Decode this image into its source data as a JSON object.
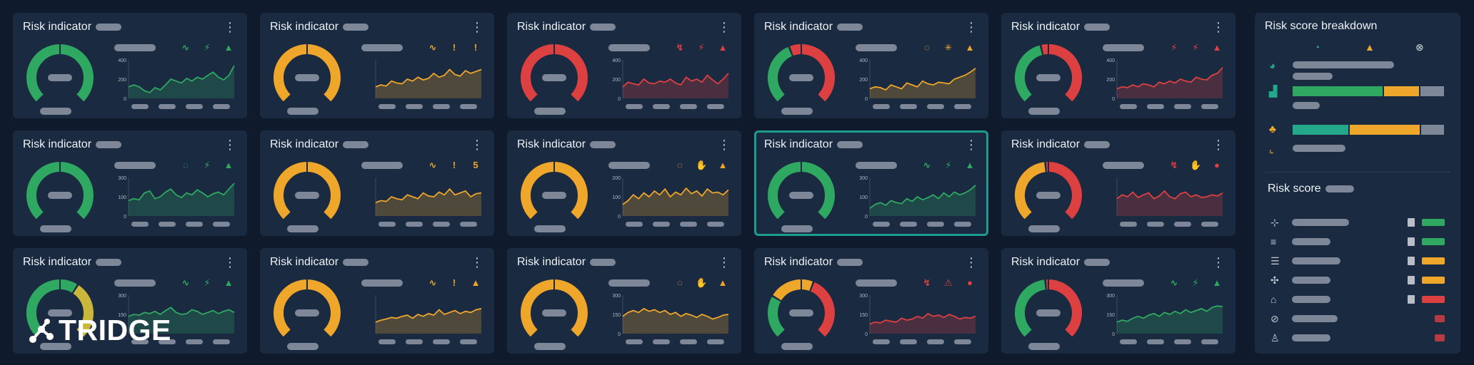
{
  "cards": [
    {
      "title": "Risk indicator",
      "color": "#2fa862",
      "gauge": [
        [
          "#2fa862",
          1
        ]
      ],
      "ticks": [
        "400",
        "200",
        "0"
      ],
      "series": [
        0.3,
        0.35,
        0.3,
        0.2,
        0.15,
        0.28,
        0.22,
        0.35,
        0.5,
        0.45,
        0.4,
        0.52,
        0.45,
        0.55,
        0.5,
        0.6,
        0.68,
        0.55,
        0.48,
        0.6,
        0.85
      ],
      "icons": [
        "∿",
        "⚡",
        "▲"
      ],
      "iconColors": [
        "#2fa862",
        "#2fa862",
        "#2fa862"
      ]
    },
    {
      "title": "Risk indicator",
      "color": "#eea62b",
      "gauge": [
        [
          "#eea62b",
          1
        ]
      ],
      "ticks": [
        "",
        "",
        ""
      ],
      "series": [
        0.3,
        0.35,
        0.32,
        0.45,
        0.4,
        0.38,
        0.5,
        0.45,
        0.55,
        0.48,
        0.52,
        0.65,
        0.55,
        0.6,
        0.75,
        0.62,
        0.58,
        0.72,
        0.65,
        0.7,
        0.75
      ],
      "icons": [
        "∿",
        "!",
        "!"
      ],
      "iconColors": [
        "#eea62b",
        "#eea62b",
        "#eea62b"
      ]
    },
    {
      "title": "Risk indicator",
      "color": "#dc4040",
      "gauge": [
        [
          "#dc4040",
          1
        ]
      ],
      "ticks": [
        "400",
        "200",
        "0"
      ],
      "series": [
        0.3,
        0.42,
        0.38,
        0.35,
        0.5,
        0.4,
        0.38,
        0.45,
        0.42,
        0.5,
        0.4,
        0.35,
        0.55,
        0.45,
        0.5,
        0.42,
        0.6,
        0.48,
        0.38,
        0.5,
        0.65
      ],
      "icons": [
        "↯",
        "⚡",
        "▲"
      ],
      "iconColors": [
        "#dc4040",
        "#dc4040",
        "#dc4040"
      ]
    },
    {
      "title": "Risk indicator",
      "color": "#eea62b",
      "gauge": [
        [
          "#2fa862",
          0.42
        ],
        [
          "#dc4040",
          0.58
        ]
      ],
      "ticks": [
        "400",
        "200",
        "0"
      ],
      "series": [
        0.25,
        0.3,
        0.28,
        0.22,
        0.35,
        0.3,
        0.25,
        0.4,
        0.35,
        0.3,
        0.45,
        0.38,
        0.35,
        0.42,
        0.4,
        0.38,
        0.5,
        0.55,
        0.6,
        0.68,
        0.78
      ],
      "icons": [
        "◌",
        "✳",
        "▲"
      ],
      "iconColors": [
        "#eea62b",
        "#eea62b",
        "#eea62b"
      ]
    },
    {
      "title": "Risk indicator",
      "color": "#dc4040",
      "gauge": [
        [
          "#2fa862",
          0.45
        ],
        [
          "#dc4040",
          0.55
        ]
      ],
      "ticks": [
        "400",
        "200",
        "0"
      ],
      "series": [
        0.25,
        0.3,
        0.28,
        0.35,
        0.3,
        0.38,
        0.35,
        0.3,
        0.42,
        0.38,
        0.45,
        0.4,
        0.5,
        0.45,
        0.42,
        0.55,
        0.5,
        0.48,
        0.6,
        0.65,
        0.8
      ],
      "icons": [
        "⚡",
        "⚡",
        "▲"
      ],
      "iconColors": [
        "#dc4040",
        "#dc4040",
        "#dc4040"
      ]
    },
    {
      "title": "Risk indicator",
      "color": "#2fa862",
      "gauge": [
        [
          "#2fa862",
          1
        ]
      ],
      "ticks": [
        "300",
        "100",
        "0"
      ],
      "series": [
        0.4,
        0.45,
        0.42,
        0.6,
        0.65,
        0.45,
        0.5,
        0.62,
        0.7,
        0.55,
        0.48,
        0.6,
        0.55,
        0.68,
        0.6,
        0.5,
        0.58,
        0.62,
        0.55,
        0.7,
        0.85
      ],
      "icons": [
        "◌",
        "⚡",
        "▲"
      ],
      "iconColors": [
        "#2fa862",
        "#2fa862",
        "#2fa862"
      ]
    },
    {
      "title": "Risk indicator",
      "color": "#eea62b",
      "gauge": [
        [
          "#eea62b",
          1
        ]
      ],
      "ticks": [
        "",
        "",
        ""
      ],
      "series": [
        0.35,
        0.4,
        0.38,
        0.5,
        0.45,
        0.42,
        0.55,
        0.5,
        0.45,
        0.6,
        0.52,
        0.5,
        0.62,
        0.55,
        0.7,
        0.55,
        0.6,
        0.65,
        0.5,
        0.58,
        0.6
      ],
      "icons": [
        "∿",
        "!",
        "5"
      ],
      "iconColors": [
        "#eea62b",
        "#eea62b",
        "#eea62b"
      ]
    },
    {
      "title": "Risk indicator",
      "color": "#eea62b",
      "gauge": [
        [
          "#eea62b",
          1
        ]
      ],
      "ticks": [
        "200",
        "100",
        "0"
      ],
      "series": [
        0.3,
        0.4,
        0.55,
        0.45,
        0.6,
        0.5,
        0.65,
        0.55,
        0.7,
        0.5,
        0.62,
        0.55,
        0.72,
        0.58,
        0.65,
        0.52,
        0.7,
        0.6,
        0.62,
        0.55,
        0.68
      ],
      "icons": [
        "◌",
        "✋",
        "▲"
      ],
      "iconColors": [
        "#eea62b",
        "#eea62b",
        "#eea62b"
      ]
    },
    {
      "title": "Risk indicator",
      "color": "#2fa862",
      "gauge": [
        [
          "#2fa862",
          1
        ]
      ],
      "ticks": [
        "300",
        "100",
        "0"
      ],
      "series": [
        0.2,
        0.3,
        0.35,
        0.28,
        0.4,
        0.35,
        0.32,
        0.45,
        0.38,
        0.5,
        0.42,
        0.48,
        0.55,
        0.45,
        0.6,
        0.5,
        0.62,
        0.55,
        0.6,
        0.68,
        0.8
      ],
      "icons": [
        "∿",
        "⚡",
        "▲"
      ],
      "iconColors": [
        "#2fa862",
        "#2fa862",
        "#2fa862"
      ]
    },
    {
      "title": "Risk indicator",
      "color": "#dc4040",
      "gauge": [
        [
          "#eea62b",
          0.48
        ],
        [
          "#dc4040",
          0.52
        ]
      ],
      "ticks": [
        "",
        "",
        ""
      ],
      "series": [
        0.45,
        0.55,
        0.5,
        0.62,
        0.48,
        0.55,
        0.6,
        0.45,
        0.52,
        0.65,
        0.5,
        0.45,
        0.58,
        0.62,
        0.5,
        0.55,
        0.48,
        0.5,
        0.55,
        0.52,
        0.6
      ],
      "icons": [
        "↯",
        "✋",
        "●"
      ],
      "iconColors": [
        "#dc4040",
        "#dc4040",
        "#dc4040"
      ]
    },
    {
      "title": "Risk indicator",
      "color": "#2fa862",
      "gauge": [
        [
          "#2fa862",
          0.62
        ],
        [
          "#c9b63a",
          0.38
        ]
      ],
      "ticks": [
        "300",
        "150",
        "0"
      ],
      "series": [
        0.45,
        0.5,
        0.48,
        0.55,
        0.52,
        0.58,
        0.5,
        0.6,
        0.68,
        0.55,
        0.5,
        0.52,
        0.62,
        0.58,
        0.5,
        0.55,
        0.6,
        0.52,
        0.58,
        0.62,
        0.55
      ],
      "icons": [
        "∿",
        "⚡",
        "▲"
      ],
      "iconColors": [
        "#2fa862",
        "#2fa862",
        "#2fa862"
      ]
    },
    {
      "title": "Risk indicator",
      "color": "#eea62b",
      "gauge": [
        [
          "#eea62b",
          1
        ]
      ],
      "ticks": [
        "",
        "",
        ""
      ],
      "series": [
        0.3,
        0.35,
        0.38,
        0.42,
        0.4,
        0.45,
        0.48,
        0.4,
        0.5,
        0.45,
        0.52,
        0.48,
        0.62,
        0.5,
        0.55,
        0.6,
        0.52,
        0.58,
        0.55,
        0.62,
        0.65
      ],
      "icons": [
        "∿",
        "!",
        "▲"
      ],
      "iconColors": [
        "#eea62b",
        "#eea62b",
        "#eea62b"
      ]
    },
    {
      "title": "Risk indicator",
      "color": "#eea62b",
      "gauge": [
        [
          "#eea62b",
          1
        ]
      ],
      "ticks": [
        "300",
        "150",
        "0"
      ],
      "series": [
        0.45,
        0.55,
        0.6,
        0.55,
        0.65,
        0.58,
        0.62,
        0.55,
        0.6,
        0.5,
        0.55,
        0.45,
        0.52,
        0.48,
        0.42,
        0.5,
        0.45,
        0.38,
        0.42,
        0.48,
        0.5
      ],
      "icons": [
        "◌",
        "✋",
        "▲"
      ],
      "iconColors": [
        "#eea62b",
        "#eea62b",
        "#eea62b"
      ]
    },
    {
      "title": "Risk indicator",
      "color": "#dc4040",
      "gauge": [
        [
          "#2fa862",
          0.28
        ],
        [
          "#eea62b",
          0.3
        ],
        [
          "#dc4040",
          0.42
        ]
      ],
      "ticks": [
        "300",
        "150",
        "0"
      ],
      "series": [
        0.25,
        0.3,
        0.28,
        0.35,
        0.32,
        0.3,
        0.4,
        0.35,
        0.38,
        0.45,
        0.4,
        0.52,
        0.45,
        0.48,
        0.42,
        0.5,
        0.45,
        0.38,
        0.42,
        0.4,
        0.45
      ],
      "icons": [
        "↯",
        "⚠",
        "●"
      ],
      "iconColors": [
        "#dc4040",
        "#dc4040",
        "#dc4040"
      ]
    },
    {
      "title": "Risk indicator",
      "color": "#2fa862",
      "gauge": [
        [
          "#2fa862",
          0.48
        ],
        [
          "#dc4040",
          0.52
        ]
      ],
      "ticks": [
        "300",
        "150",
        "0"
      ],
      "series": [
        0.3,
        0.35,
        0.32,
        0.4,
        0.45,
        0.4,
        0.48,
        0.52,
        0.45,
        0.55,
        0.5,
        0.58,
        0.52,
        0.62,
        0.55,
        0.6,
        0.65,
        0.58,
        0.68,
        0.72,
        0.7
      ],
      "icons": [
        "∿",
        "⚡",
        "▲"
      ],
      "iconColors": [
        "#2fa862",
        "#2fa862",
        "#2fa862"
      ]
    }
  ],
  "sidebar": {
    "breakdown_title": "Risk score breakdown",
    "legend_icons": [
      "◔",
      "▲",
      "⊗"
    ],
    "legend_colors": [
      "#23a88a",
      "#eea62b",
      "#b9bec6"
    ],
    "breakdown_bars": [
      {
        "segments": [
          [
            "#2fa862",
            0.46
          ],
          [
            "#eea62b",
            0.18
          ],
          [
            "#7d8797",
            0.12
          ]
        ]
      },
      {
        "segments": [
          [
            "#23a88a",
            0.29
          ],
          [
            "#eea62b",
            0.36
          ],
          [
            "#7d8797",
            0.12
          ]
        ]
      }
    ],
    "score_title": "Risk score",
    "score_rows": [
      {
        "icon": "⊹",
        "bar": "#2fa862"
      },
      {
        "icon": "≡",
        "bar": "#2fa862"
      },
      {
        "icon": "☰",
        "bar": "#eea62b"
      },
      {
        "icon": "✣",
        "bar": "#eea62b"
      },
      {
        "icon": "⌂",
        "bar": "#dc4040"
      },
      {
        "icon": "⊘",
        "bar": "#dc4040"
      },
      {
        "icon": "♙",
        "bar": "#dc4040"
      }
    ]
  },
  "logo": {
    "text": "TRIDGE"
  }
}
